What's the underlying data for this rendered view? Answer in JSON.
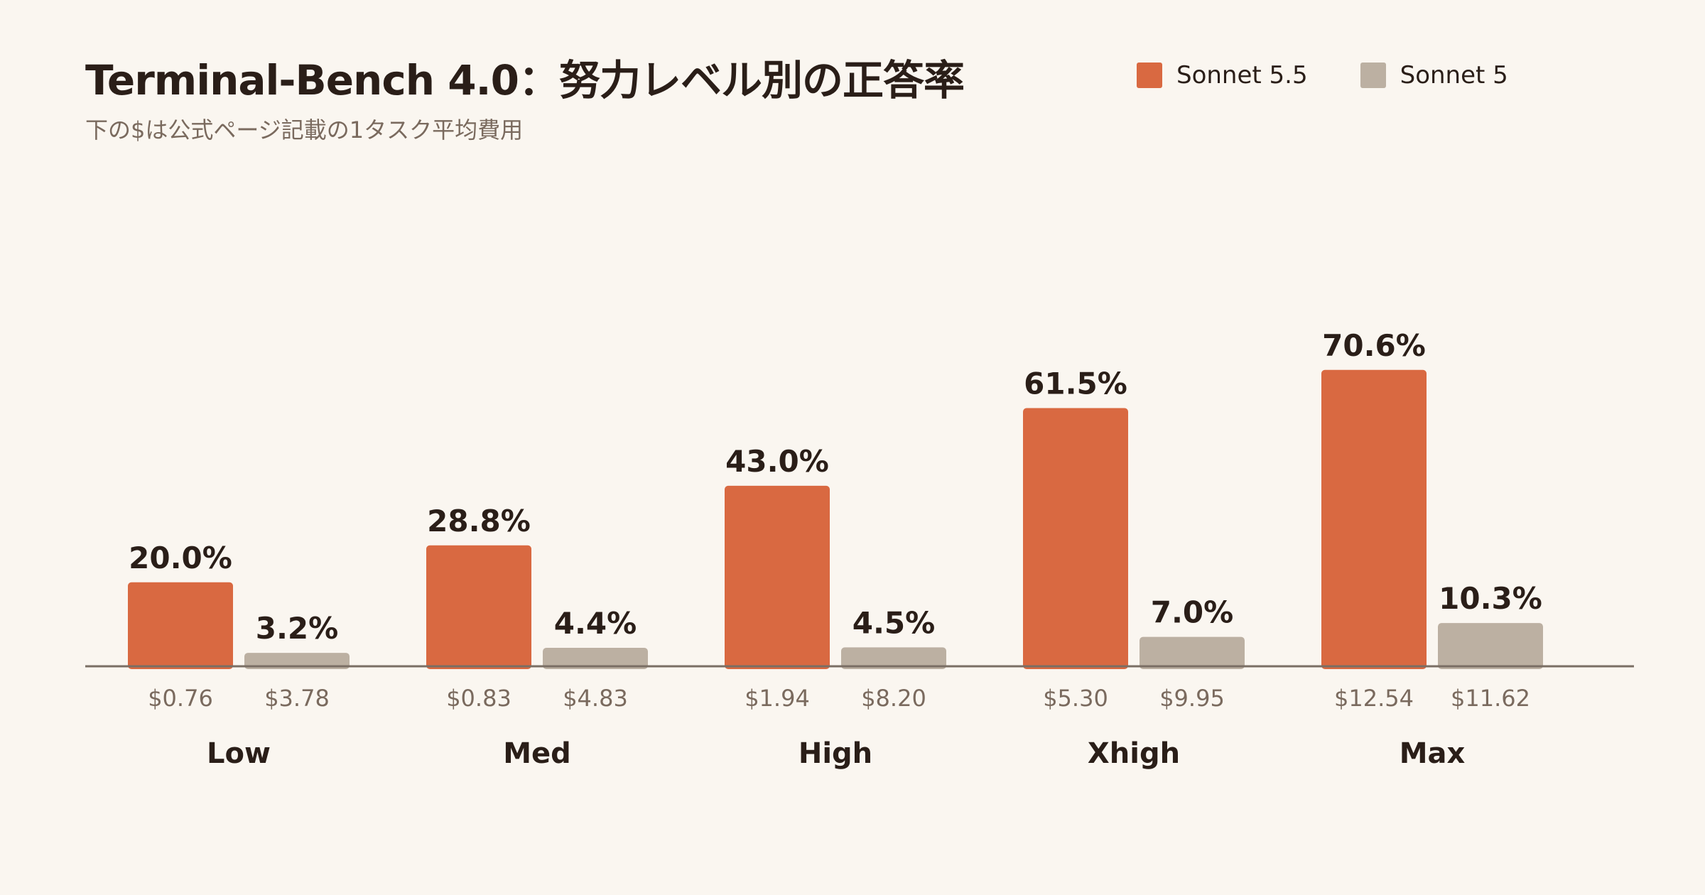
{
  "title": "Terminal-Bench 4.0：努力レベル別の正答率",
  "subtitle": "下の$は公式ページ記載の1タスク平均費用",
  "legend": [
    {
      "name": "Sonnet 5.5",
      "color": "#d96941"
    },
    {
      "name": "Sonnet 5",
      "color": "#bcb0a2"
    }
  ],
  "chart_data": {
    "type": "bar",
    "title": "Terminal-Bench 4.0：努力レベル別の正答率",
    "subtitle": "下の$は公式ページ記載の1タスク平均費用",
    "xlabel": "",
    "ylabel": "",
    "ylim": [
      0,
      80
    ],
    "grid": false,
    "legend_position": "top-right",
    "categories": [
      "Low",
      "Med",
      "High",
      "Xhigh",
      "Max"
    ],
    "series": [
      {
        "name": "Sonnet 5.5",
        "color": "#d96941",
        "values": [
          20.0,
          28.8,
          43.0,
          61.5,
          70.6
        ],
        "value_labels": [
          "20.0%",
          "28.8%",
          "43.0%",
          "61.5%",
          "70.6%"
        ],
        "cost_labels": [
          "$0.76",
          "$0.83",
          "$1.94",
          "$5.30",
          "$12.54"
        ]
      },
      {
        "name": "Sonnet 5",
        "color": "#bcb0a2",
        "values": [
          3.2,
          4.4,
          4.5,
          7.0,
          10.3
        ],
        "value_labels": [
          "3.2%",
          "4.4%",
          "4.5%",
          "7.0%",
          "10.3%"
        ],
        "cost_labels": [
          "$3.78",
          "$4.83",
          "$8.20",
          "$9.95",
          "$11.62"
        ]
      }
    ]
  }
}
